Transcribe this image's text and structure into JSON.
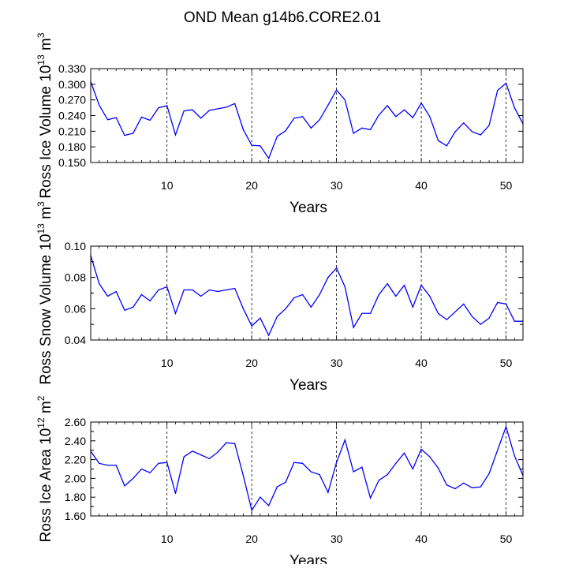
{
  "title": "OND Mean g14b6.CORE2.01",
  "colors": {
    "line": "#0000ff",
    "axis": "#000000",
    "grid": "#000000"
  },
  "chart_data": [
    {
      "type": "line",
      "ylabel_parts": [
        "Ross Ice Volume 10",
        "13",
        " m",
        "3"
      ],
      "xlabel": "Years",
      "xlim": [
        1,
        52
      ],
      "ylim": [
        0.15,
        0.33
      ],
      "yticks": [
        0.15,
        0.18,
        0.21,
        0.24,
        0.27,
        0.3,
        0.33
      ],
      "yticklabels": [
        "0.150",
        "0.180",
        "0.210",
        "0.240",
        "0.270",
        "0.300",
        "0.330"
      ],
      "ydecimals": 2,
      "xticks": [
        10,
        20,
        30,
        40,
        50
      ],
      "xticklabels": [
        "10",
        "20",
        "30",
        "40",
        "50"
      ],
      "vlines": [
        10,
        20,
        30,
        40,
        50
      ],
      "x": [
        1,
        2,
        3,
        4,
        5,
        6,
        7,
        8,
        9,
        10,
        11,
        12,
        13,
        14,
        15,
        16,
        17,
        18,
        19,
        20,
        21,
        22,
        23,
        24,
        25,
        26,
        27,
        28,
        29,
        30,
        31,
        32,
        33,
        34,
        35,
        36,
        37,
        38,
        39,
        40,
        41,
        42,
        43,
        44,
        45,
        46,
        47,
        48,
        49,
        50,
        51,
        52
      ],
      "values": [
        0.305,
        0.26,
        0.232,
        0.236,
        0.202,
        0.206,
        0.237,
        0.231,
        0.255,
        0.259,
        0.203,
        0.249,
        0.251,
        0.235,
        0.25,
        0.253,
        0.256,
        0.263,
        0.213,
        0.183,
        0.182,
        0.158,
        0.2,
        0.211,
        0.235,
        0.238,
        0.216,
        0.232,
        0.26,
        0.289,
        0.27,
        0.206,
        0.216,
        0.213,
        0.241,
        0.259,
        0.238,
        0.251,
        0.236,
        0.264,
        0.238,
        0.192,
        0.182,
        0.209,
        0.226,
        0.209,
        0.203,
        0.221,
        0.288,
        0.302,
        0.255,
        0.224
      ]
    },
    {
      "type": "line",
      "ylabel_parts": [
        "Ross Snow Volume 10",
        "13",
        " m",
        "3"
      ],
      "xlabel": "Years",
      "xlim": [
        1,
        52
      ],
      "ylim": [
        0.04,
        0.1
      ],
      "yticks": [
        0.04,
        0.05,
        0.06,
        0.07,
        0.08,
        0.09,
        0.1
      ],
      "yticklabels": [
        "0.04",
        "",
        "0.06",
        "",
        "0.08",
        "",
        "0.10"
      ],
      "ydecimals": 3,
      "xticks": [
        10,
        20,
        30,
        40,
        50
      ],
      "xticklabels": [
        "10",
        "20",
        "30",
        "40",
        "50"
      ],
      "vlines": [
        10,
        20,
        30,
        40,
        50
      ],
      "x": [
        1,
        2,
        3,
        4,
        5,
        6,
        7,
        8,
        9,
        10,
        11,
        12,
        13,
        14,
        15,
        16,
        17,
        18,
        19,
        20,
        21,
        22,
        23,
        24,
        25,
        26,
        27,
        28,
        29,
        30,
        31,
        32,
        33,
        34,
        35,
        36,
        37,
        38,
        39,
        40,
        41,
        42,
        43,
        44,
        45,
        46,
        47,
        48,
        49,
        50,
        51,
        52
      ],
      "values": [
        0.094,
        0.076,
        0.068,
        0.071,
        0.059,
        0.061,
        0.069,
        0.065,
        0.072,
        0.074,
        0.057,
        0.072,
        0.072,
        0.068,
        0.072,
        0.071,
        0.072,
        0.073,
        0.06,
        0.049,
        0.054,
        0.043,
        0.055,
        0.06,
        0.067,
        0.069,
        0.061,
        0.069,
        0.08,
        0.086,
        0.074,
        0.048,
        0.057,
        0.057,
        0.069,
        0.076,
        0.068,
        0.075,
        0.061,
        0.075,
        0.068,
        0.057,
        0.053,
        0.058,
        0.063,
        0.055,
        0.05,
        0.054,
        0.064,
        0.063,
        0.052,
        0.052
      ]
    },
    {
      "type": "line",
      "ylabel_parts": [
        "Ross Ice Area 10",
        "12",
        " m",
        "2"
      ],
      "xlabel": "Years",
      "xlim": [
        1,
        52
      ],
      "ylim": [
        1.6,
        2.6
      ],
      "yticks": [
        1.6,
        1.7,
        1.8,
        1.9,
        2.0,
        2.1,
        2.2,
        2.3,
        2.4,
        2.5,
        2.6
      ],
      "yticklabels": [
        "1.60",
        "",
        "1.80",
        "",
        "2.00",
        "",
        "2.20",
        "",
        "2.40",
        "",
        "2.60"
      ],
      "ydecimals": 2,
      "xticks": [
        10,
        20,
        30,
        40,
        50
      ],
      "xticklabels": [
        "10",
        "20",
        "30",
        "40",
        "50"
      ],
      "vlines": [
        10,
        20,
        30,
        40,
        50
      ],
      "x": [
        1,
        2,
        3,
        4,
        5,
        6,
        7,
        8,
        9,
        10,
        11,
        12,
        13,
        14,
        15,
        16,
        17,
        18,
        19,
        20,
        21,
        22,
        23,
        24,
        25,
        26,
        27,
        28,
        29,
        30,
        31,
        32,
        33,
        34,
        35,
        36,
        37,
        38,
        39,
        40,
        41,
        42,
        43,
        44,
        45,
        46,
        47,
        48,
        49,
        50,
        51,
        52
      ],
      "values": [
        2.29,
        2.16,
        2.14,
        2.14,
        1.92,
        2.0,
        2.1,
        2.06,
        2.16,
        2.17,
        1.84,
        2.23,
        2.29,
        2.25,
        2.21,
        2.28,
        2.38,
        2.37,
        2.03,
        1.66,
        1.8,
        1.71,
        1.91,
        1.96,
        2.17,
        2.16,
        2.07,
        2.04,
        1.85,
        2.17,
        2.41,
        2.07,
        2.12,
        1.79,
        1.98,
        2.04,
        2.16,
        2.27,
        2.1,
        2.31,
        2.23,
        2.11,
        1.93,
        1.89,
        1.95,
        1.9,
        1.91,
        2.05,
        2.3,
        2.55,
        2.24,
        2.03
      ]
    }
  ]
}
